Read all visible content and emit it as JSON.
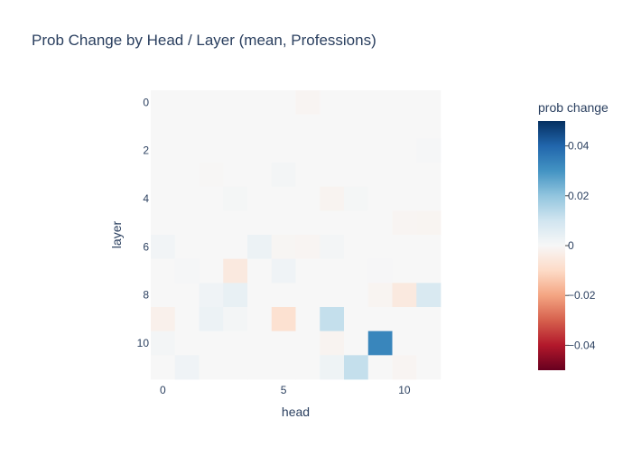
{
  "chart_data": {
    "type": "heatmap",
    "title": "Prob Change by Head / Layer (mean, Professions)",
    "xlabel": "head",
    "ylabel": "layer",
    "x_ticks": [
      0,
      5,
      10
    ],
    "y_ticks": [
      0,
      2,
      4,
      6,
      8,
      10
    ],
    "xlim": [
      -0.5,
      11.5
    ],
    "ylim": [
      -0.5,
      11.5
    ],
    "y_reversed": true,
    "heads": [
      0,
      1,
      2,
      3,
      4,
      5,
      6,
      7,
      8,
      9,
      10,
      11
    ],
    "layers": [
      0,
      1,
      2,
      3,
      4,
      5,
      6,
      7,
      8,
      9,
      10,
      11
    ],
    "colorbar": {
      "title": "prob change",
      "min": -0.05,
      "max": 0.05,
      "ticks": [
        0.04,
        0.02,
        0,
        -0.02,
        -0.04
      ],
      "tick_labels": [
        "0.04",
        "0.02",
        "0",
        "−0.02",
        "−0.04"
      ],
      "colorscale": "RdBu"
    },
    "z": [
      [
        0,
        0,
        0,
        0,
        0,
        0,
        -0.001,
        0,
        0,
        0,
        0,
        0
      ],
      [
        0,
        0,
        0,
        0,
        0,
        0,
        0,
        0,
        0,
        0,
        0,
        0
      ],
      [
        0,
        0,
        0,
        0,
        0,
        0,
        0,
        0,
        0,
        0,
        0,
        0.0005
      ],
      [
        0,
        0,
        -0.0005,
        0,
        0,
        0.001,
        0,
        0,
        0,
        0,
        0,
        0
      ],
      [
        0,
        0,
        0,
        0.0008,
        0,
        0,
        0,
        -0.0015,
        0.0008,
        0,
        0,
        0
      ],
      [
        0,
        0,
        0,
        0,
        0,
        0,
        0,
        0,
        0,
        0,
        -0.001,
        -0.0012
      ],
      [
        0.0015,
        0,
        0,
        0,
        0.003,
        -0.0008,
        -0.001,
        0.001,
        0,
        0,
        0,
        0
      ],
      [
        0,
        0.0005,
        0,
        -0.005,
        0,
        0.002,
        0,
        0,
        0,
        0.0003,
        0,
        0
      ],
      [
        0,
        0,
        0.002,
        0.004,
        0,
        0,
        0,
        0,
        0,
        -0.0012,
        -0.005,
        0.008
      ],
      [
        -0.0025,
        0,
        0.003,
        0.001,
        0,
        -0.008,
        0,
        0.012,
        0,
        0,
        0,
        0
      ],
      [
        0.001,
        0,
        0,
        0,
        0,
        0,
        0,
        -0.0015,
        0,
        0.033,
        0,
        0
      ],
      [
        0,
        0.002,
        0,
        0,
        0,
        0,
        0,
        0.0025,
        0.012,
        0,
        -0.001,
        0
      ]
    ]
  }
}
